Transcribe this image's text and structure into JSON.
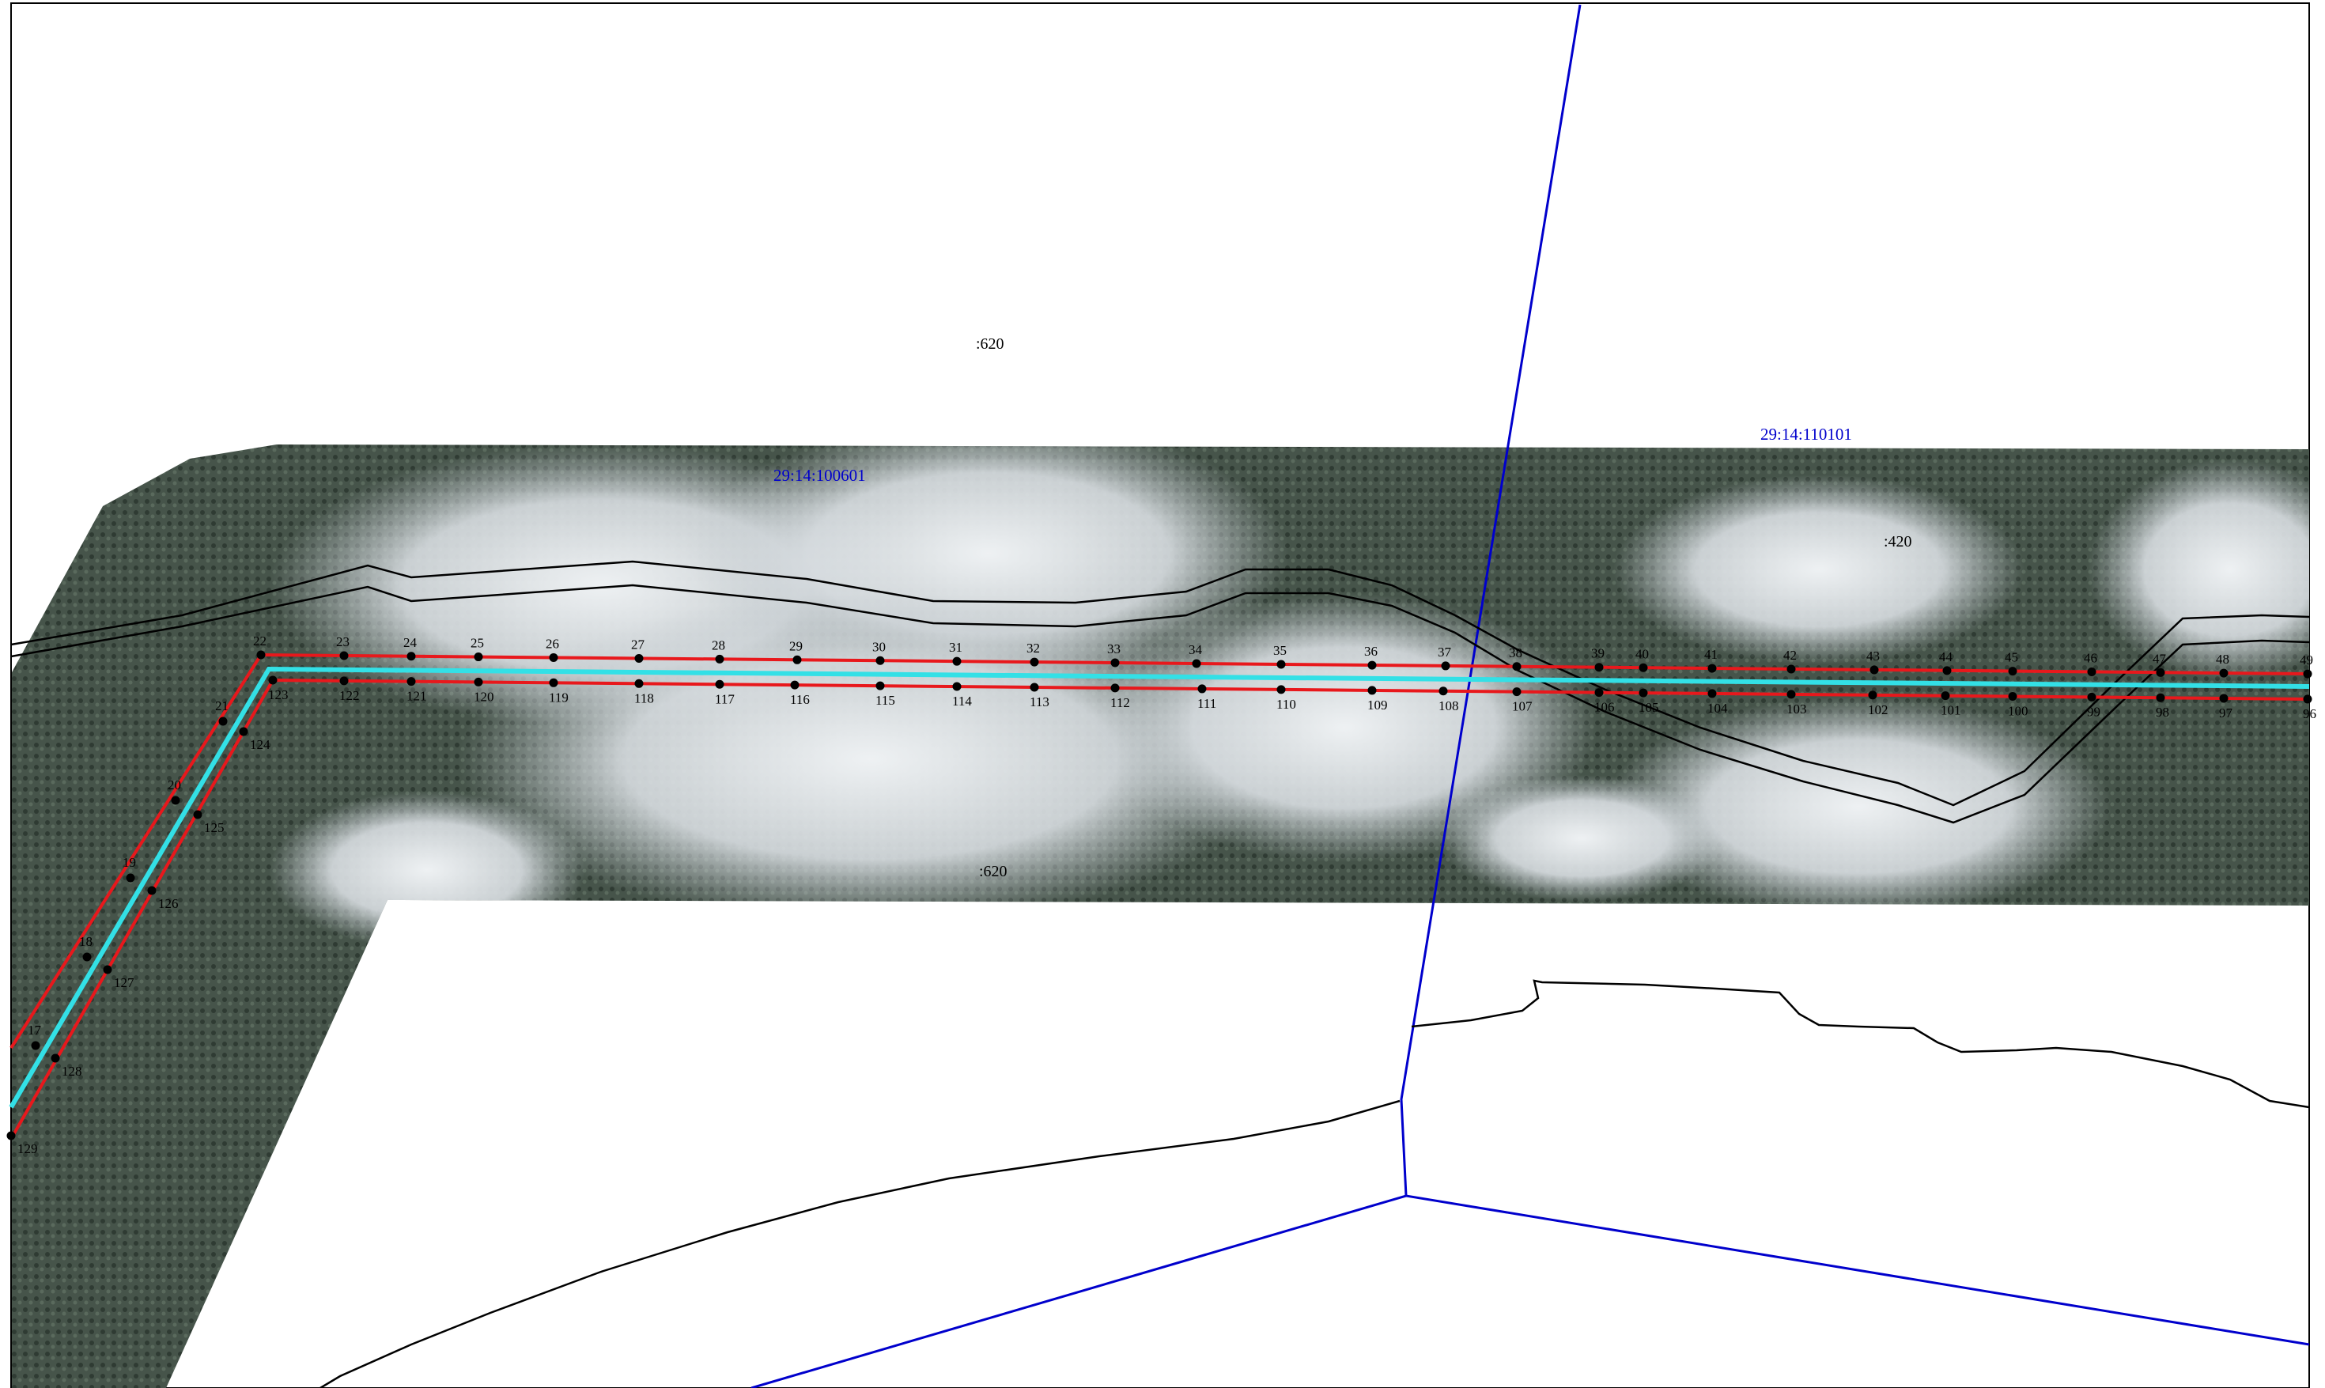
{
  "map": {
    "cadastral_quarters": [
      {
        "id": "q-100601",
        "label": "29:14:100601"
      },
      {
        "id": "q-110101",
        "label": "29:14:110101"
      }
    ],
    "plot_labels": [
      {
        "id": "plot-620-top",
        "label": ":620"
      },
      {
        "id": "plot-620-bottom",
        "label": ":620"
      },
      {
        "id": "plot-420",
        "label": ":420"
      }
    ],
    "colors": {
      "corridor_boundary": "#e8181c",
      "centerline": "#33e0e6",
      "quarter_boundary": "#0000cc",
      "contour": "#000000",
      "imagery_forest": "#3d4a3f",
      "imagery_cloud": "#dfe3e6"
    },
    "upper_points": [
      "17",
      "18",
      "19",
      "20",
      "21",
      "22",
      "23",
      "24",
      "25",
      "26",
      "27",
      "28",
      "29",
      "30",
      "31",
      "32",
      "33",
      "34",
      "35",
      "36",
      "37",
      "38",
      "39",
      "40",
      "41",
      "42",
      "43",
      "44",
      "45",
      "46",
      "47",
      "48",
      "49"
    ],
    "lower_points": [
      "123",
      "122",
      "121",
      "120",
      "119",
      "118",
      "117",
      "116",
      "115",
      "114",
      "113",
      "112",
      "111",
      "110",
      "109",
      "108",
      "107",
      "106",
      "105",
      "104",
      "103",
      "102",
      "101",
      "100",
      "99",
      "98",
      "97",
      "96",
      "124",
      "125",
      "126",
      "127",
      "128",
      "129"
    ]
  }
}
